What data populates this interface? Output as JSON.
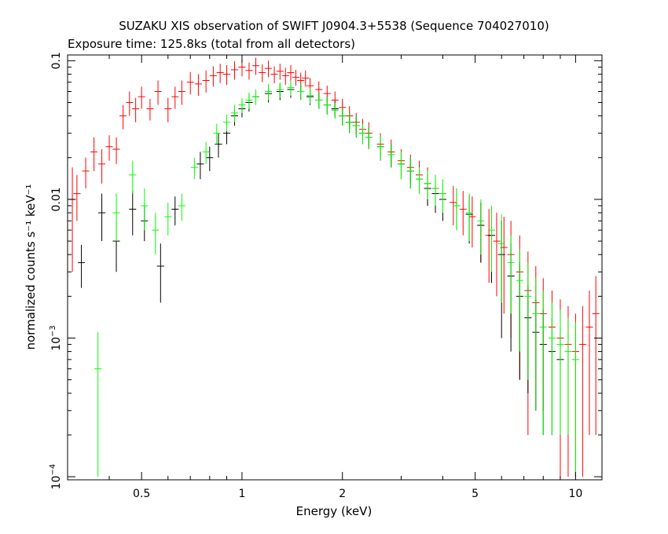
{
  "chart_data": {
    "type": "scatter",
    "title": "SUZAKU XIS observation of SWIFT J0904.3+5538 (Sequence 704027010)",
    "subtitle": "Exposure time: 125.8ks (total from all detectors)",
    "xlabel": "Energy (keV)",
    "ylabel": "normalized counts s⁻¹ keV⁻¹",
    "x_scale": "log",
    "y_scale": "log",
    "xlim": [
      0.3,
      12
    ],
    "ylim": [
      9.5e-05,
      0.11
    ],
    "x_ticks": [
      {
        "value": 0.5,
        "label": "0.5"
      },
      {
        "value": 1,
        "label": "1"
      },
      {
        "value": 2,
        "label": "2"
      },
      {
        "value": 5,
        "label": "5"
      },
      {
        "value": 10,
        "label": "10"
      }
    ],
    "y_ticks": [
      {
        "value": 0.0001,
        "base": "10",
        "exp": "−4"
      },
      {
        "value": 0.001,
        "base": "10",
        "exp": "−3"
      },
      {
        "value": 0.01,
        "label": "0.01"
      },
      {
        "value": 0.1,
        "label": "0.1"
      }
    ],
    "grid": false,
    "series": [
      {
        "color": "#ff0000",
        "points": [
          [
            0.31,
            0.01,
            0.007
          ],
          [
            0.32,
            0.011,
            0.004
          ],
          [
            0.34,
            0.016,
            0.004
          ],
          [
            0.36,
            0.022,
            0.006
          ],
          [
            0.38,
            0.018,
            0.005
          ],
          [
            0.4,
            0.024,
            0.005
          ],
          [
            0.42,
            0.023,
            0.005
          ],
          [
            0.44,
            0.04,
            0.008
          ],
          [
            0.46,
            0.05,
            0.01
          ],
          [
            0.48,
            0.045,
            0.009
          ],
          [
            0.5,
            0.055,
            0.01
          ],
          [
            0.53,
            0.045,
            0.008
          ],
          [
            0.56,
            0.06,
            0.012
          ],
          [
            0.6,
            0.045,
            0.009
          ],
          [
            0.63,
            0.055,
            0.01
          ],
          [
            0.66,
            0.06,
            0.012
          ],
          [
            0.7,
            0.07,
            0.013
          ],
          [
            0.74,
            0.068,
            0.012
          ],
          [
            0.78,
            0.072,
            0.013
          ],
          [
            0.82,
            0.078,
            0.013
          ],
          [
            0.86,
            0.082,
            0.013
          ],
          [
            0.9,
            0.08,
            0.013
          ],
          [
            0.95,
            0.086,
            0.013
          ],
          [
            1.0,
            0.09,
            0.013
          ],
          [
            1.05,
            0.085,
            0.012
          ],
          [
            1.1,
            0.092,
            0.013
          ],
          [
            1.15,
            0.082,
            0.012
          ],
          [
            1.2,
            0.088,
            0.012
          ],
          [
            1.25,
            0.08,
            0.011
          ],
          [
            1.3,
            0.084,
            0.011
          ],
          [
            1.35,
            0.078,
            0.011
          ],
          [
            1.4,
            0.082,
            0.011
          ],
          [
            1.45,
            0.076,
            0.01
          ],
          [
            1.5,
            0.072,
            0.01
          ],
          [
            1.55,
            0.075,
            0.01
          ],
          [
            1.6,
            0.066,
            0.009
          ],
          [
            1.7,
            0.062,
            0.009
          ],
          [
            1.8,
            0.058,
            0.008
          ],
          [
            1.9,
            0.052,
            0.008
          ],
          [
            2.0,
            0.046,
            0.007
          ],
          [
            2.1,
            0.04,
            0.007
          ],
          [
            2.2,
            0.036,
            0.006
          ],
          [
            2.3,
            0.032,
            0.006
          ],
          [
            2.4,
            0.03,
            0.006
          ],
          [
            2.6,
            0.025,
            0.005
          ],
          [
            2.8,
            0.022,
            0.005
          ],
          [
            3.0,
            0.019,
            0.004
          ],
          [
            3.2,
            0.017,
            0.004
          ],
          [
            3.4,
            0.015,
            0.004
          ],
          [
            3.6,
            0.013,
            0.004
          ],
          [
            3.8,
            0.012,
            0.003
          ],
          [
            4.0,
            0.011,
            0.003
          ],
          [
            4.3,
            0.0095,
            0.003
          ],
          [
            4.6,
            0.0085,
            0.003
          ],
          [
            4.9,
            0.0075,
            0.003
          ],
          [
            5.2,
            0.0065,
            0.003
          ],
          [
            5.5,
            0.0055,
            0.003
          ],
          [
            5.8,
            0.005,
            0.003
          ],
          [
            6.1,
            0.0045,
            0.003
          ],
          [
            6.4,
            0.004,
            0.003
          ],
          [
            6.8,
            0.003,
            0.0025
          ],
          [
            7.2,
            0.0022,
            0.002
          ],
          [
            7.6,
            0.0018,
            0.0015
          ],
          [
            8.0,
            0.0015,
            0.0012
          ],
          [
            8.5,
            0.0012,
            0.001
          ],
          [
            9.0,
            0.001,
            0.0009
          ],
          [
            9.5,
            0.0009,
            0.0008
          ],
          [
            10.0,
            0.0008,
            0.0007
          ],
          [
            10.5,
            0.0009,
            0.0008
          ],
          [
            11.0,
            0.0012,
            0.001
          ],
          [
            11.5,
            0.0015,
            0.0013
          ]
        ]
      },
      {
        "color": "#000000",
        "points": [
          [
            0.33,
            0.0035,
            0.0012
          ],
          [
            0.38,
            0.008,
            0.003
          ],
          [
            0.42,
            0.005,
            0.002
          ],
          [
            0.47,
            0.0085,
            0.003
          ],
          [
            0.51,
            0.007,
            0.002
          ],
          [
            0.57,
            0.0033,
            0.0015
          ],
          [
            0.63,
            0.0085,
            0.002
          ],
          [
            0.75,
            0.018,
            0.004
          ],
          [
            0.8,
            0.02,
            0.004
          ],
          [
            0.85,
            0.025,
            0.005
          ],
          [
            0.9,
            0.03,
            0.005
          ],
          [
            0.95,
            0.04,
            0.006
          ],
          [
            1.0,
            0.045,
            0.006
          ],
          [
            1.05,
            0.05,
            0.007
          ],
          [
            1.1,
            0.055,
            0.007
          ],
          [
            1.2,
            0.058,
            0.008
          ],
          [
            1.3,
            0.06,
            0.008
          ],
          [
            1.4,
            0.062,
            0.008
          ],
          [
            1.5,
            0.06,
            0.008
          ],
          [
            1.6,
            0.055,
            0.007
          ],
          [
            1.7,
            0.052,
            0.007
          ],
          [
            1.8,
            0.048,
            0.007
          ],
          [
            1.9,
            0.045,
            0.006
          ],
          [
            2.0,
            0.04,
            0.006
          ],
          [
            2.1,
            0.036,
            0.006
          ],
          [
            2.2,
            0.034,
            0.006
          ],
          [
            2.3,
            0.03,
            0.005
          ],
          [
            2.4,
            0.028,
            0.005
          ],
          [
            2.6,
            0.024,
            0.005
          ],
          [
            2.8,
            0.021,
            0.004
          ],
          [
            3.0,
            0.018,
            0.004
          ],
          [
            3.2,
            0.016,
            0.004
          ],
          [
            3.4,
            0.014,
            0.003
          ],
          [
            3.6,
            0.012,
            0.003
          ],
          [
            3.8,
            0.011,
            0.003
          ],
          [
            4.0,
            0.01,
            0.003
          ],
          [
            4.4,
            0.009,
            0.003
          ],
          [
            4.8,
            0.0078,
            0.003
          ],
          [
            5.2,
            0.0065,
            0.003
          ],
          [
            5.6,
            0.0055,
            0.003
          ],
          [
            6.0,
            0.004,
            0.003
          ],
          [
            6.4,
            0.0028,
            0.002
          ],
          [
            6.8,
            0.002,
            0.0015
          ],
          [
            7.2,
            0.0014,
            0.001
          ],
          [
            7.6,
            0.0011,
            0.0008
          ],
          [
            8.0,
            0.0009,
            0.0007
          ],
          [
            8.5,
            0.0008,
            0.0006
          ],
          [
            9.0,
            0.0007,
            0.0005
          ]
        ]
      },
      {
        "color": "#00ff00",
        "points": [
          [
            0.37,
            0.0006,
            0.0005
          ],
          [
            0.42,
            0.008,
            0.003
          ],
          [
            0.47,
            0.015,
            0.004
          ],
          [
            0.51,
            0.009,
            0.003
          ],
          [
            0.55,
            0.006,
            0.002
          ],
          [
            0.6,
            0.0075,
            0.002
          ],
          [
            0.66,
            0.009,
            0.002
          ],
          [
            0.72,
            0.017,
            0.003
          ],
          [
            0.78,
            0.022,
            0.004
          ],
          [
            0.84,
            0.03,
            0.005
          ],
          [
            0.9,
            0.036,
            0.005
          ],
          [
            0.95,
            0.042,
            0.006
          ],
          [
            1.0,
            0.048,
            0.006
          ],
          [
            1.05,
            0.052,
            0.007
          ],
          [
            1.1,
            0.055,
            0.007
          ],
          [
            1.2,
            0.06,
            0.008
          ],
          [
            1.3,
            0.062,
            0.008
          ],
          [
            1.4,
            0.064,
            0.008
          ],
          [
            1.5,
            0.06,
            0.008
          ],
          [
            1.6,
            0.056,
            0.007
          ],
          [
            1.7,
            0.052,
            0.007
          ],
          [
            1.8,
            0.048,
            0.007
          ],
          [
            1.9,
            0.044,
            0.006
          ],
          [
            2.0,
            0.04,
            0.006
          ],
          [
            2.1,
            0.036,
            0.006
          ],
          [
            2.2,
            0.034,
            0.006
          ],
          [
            2.3,
            0.03,
            0.005
          ],
          [
            2.4,
            0.028,
            0.005
          ],
          [
            2.6,
            0.024,
            0.005
          ],
          [
            2.8,
            0.021,
            0.004
          ],
          [
            3.0,
            0.018,
            0.004
          ],
          [
            3.2,
            0.016,
            0.004
          ],
          [
            3.4,
            0.014,
            0.003
          ],
          [
            3.6,
            0.013,
            0.003
          ],
          [
            3.8,
            0.012,
            0.003
          ],
          [
            4.0,
            0.011,
            0.003
          ],
          [
            4.4,
            0.009,
            0.003
          ],
          [
            4.8,
            0.008,
            0.003
          ],
          [
            5.2,
            0.007,
            0.003
          ],
          [
            5.6,
            0.006,
            0.003
          ],
          [
            6.0,
            0.0048,
            0.003
          ],
          [
            6.4,
            0.0035,
            0.002
          ],
          [
            6.8,
            0.0026,
            0.0018
          ],
          [
            7.2,
            0.002,
            0.0015
          ],
          [
            7.6,
            0.0015,
            0.0012
          ],
          [
            8.0,
            0.0012,
            0.001
          ],
          [
            8.5,
            0.001,
            0.0008
          ],
          [
            9.0,
            0.0009,
            0.0007
          ],
          [
            9.5,
            0.0008,
            0.0006
          ],
          [
            10.0,
            0.0007,
            0.0006
          ]
        ]
      }
    ]
  }
}
